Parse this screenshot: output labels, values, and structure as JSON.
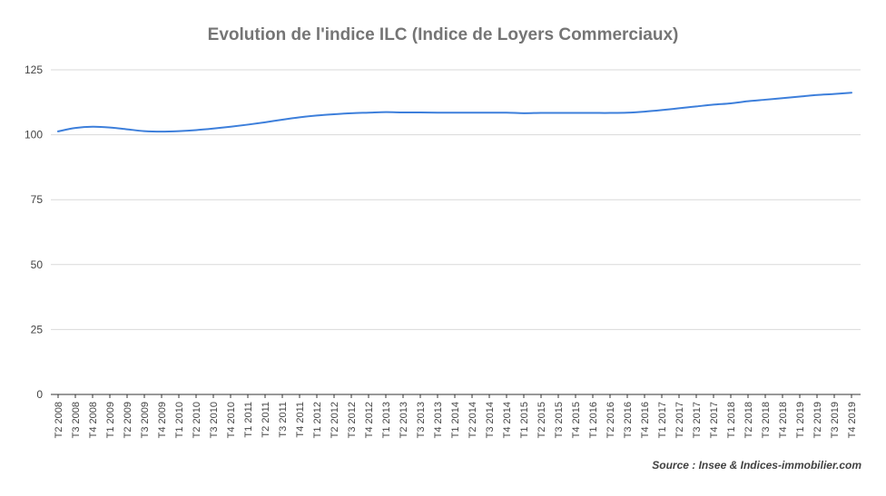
{
  "chart_data": {
    "type": "line",
    "title": "Evolution de l'indice ILC (Indice de Loyers Commerciaux)",
    "source": "Source : Insee & Indices-immobilier.com",
    "ylim": [
      0,
      125
    ],
    "yticks": [
      0,
      25,
      50,
      75,
      100,
      125
    ],
    "grid": true,
    "legend": "none",
    "series_color": "#3d7fdb",
    "grid_color": "#d9d9d9",
    "axis_color": "#333333",
    "categories": [
      "T2 2008",
      "T3 2008",
      "T4 2008",
      "T1 2009",
      "T2 2009",
      "T3 2009",
      "T4 2009",
      "T1 2010",
      "T2 2010",
      "T3 2010",
      "T4 2010",
      "T1 2011",
      "T2 2011",
      "T3 2011",
      "T4 2011",
      "T1 2012",
      "T2 2012",
      "T3 2012",
      "T4 2012",
      "T1 2013",
      "T2 2013",
      "T3 2013",
      "T4 2013",
      "T1 2014",
      "T2 2014",
      "T3 2014",
      "T4 2014",
      "T1 2015",
      "T2 2015",
      "T3 2015",
      "T4 2015",
      "T1 2016",
      "T2 2016",
      "T3 2016",
      "T4 2016",
      "T1 2017",
      "T2 2017",
      "T3 2017",
      "T4 2017",
      "T1 2018",
      "T2 2018",
      "T3 2018",
      "T4 2018",
      "T1 2019",
      "T2 2019",
      "T3 2019",
      "T4 2019"
    ],
    "values": [
      101.3,
      102.6,
      103.1,
      102.8,
      102.1,
      101.4,
      101.2,
      101.4,
      101.8,
      102.4,
      103.1,
      103.9,
      104.8,
      105.8,
      106.7,
      107.4,
      107.9,
      108.3,
      108.5,
      108.7,
      108.6,
      108.6,
      108.5,
      108.5,
      108.5,
      108.5,
      108.5,
      108.3,
      108.4,
      108.4,
      108.4,
      108.4,
      108.4,
      108.5,
      108.9,
      109.5,
      110.2,
      110.9,
      111.6,
      112.1,
      112.9,
      113.5,
      114.1,
      114.7,
      115.3,
      115.7,
      116.2
    ]
  }
}
